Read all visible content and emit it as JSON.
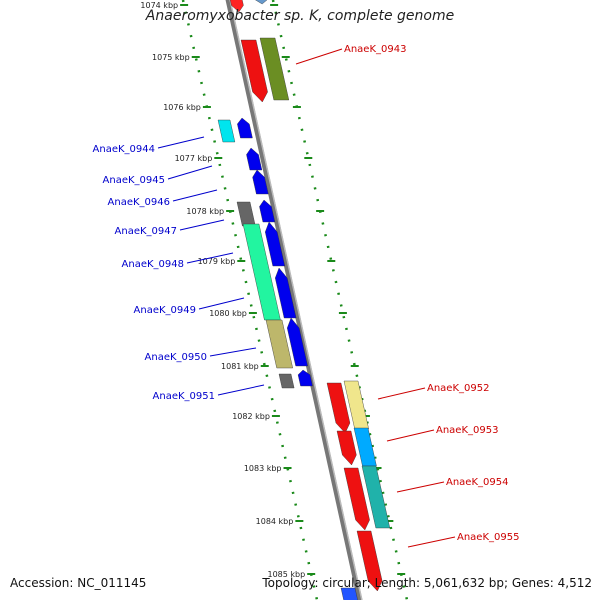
{
  "title": "Anaeromyxobacter sp. K, complete genome",
  "footer": {
    "accession": "Accession: NC_011145",
    "topology": "Topology: circular; Length: 5,061,632 bp; Genes: 4,512"
  },
  "colors": {
    "backbone": "#888888",
    "tick": "#1a8a1a",
    "forward_label": "#cc0000",
    "reverse_label": "#0000cc"
  },
  "kbp_ticks": [
    "1074 kbp",
    "1075 kbp",
    "1076 kbp",
    "1077 kbp",
    "1078 kbp",
    "1079 kbp",
    "1080 kbp",
    "1081 kbp",
    "1082 kbp",
    "1083 kbp",
    "1084 kbp",
    "1085 kbp"
  ],
  "gene_labels": [
    {
      "id": "AnaeK_0943",
      "strand": "forward"
    },
    {
      "id": "AnaeK_0944",
      "strand": "reverse"
    },
    {
      "id": "AnaeK_0945",
      "strand": "reverse"
    },
    {
      "id": "AnaeK_0946",
      "strand": "reverse"
    },
    {
      "id": "AnaeK_0947",
      "strand": "reverse"
    },
    {
      "id": "AnaeK_0948",
      "strand": "reverse"
    },
    {
      "id": "AnaeK_0949",
      "strand": "reverse"
    },
    {
      "id": "AnaeK_0950",
      "strand": "reverse"
    },
    {
      "id": "AnaeK_0951",
      "strand": "reverse"
    },
    {
      "id": "AnaeK_0952",
      "strand": "forward"
    },
    {
      "id": "AnaeK_0953",
      "strand": "forward"
    },
    {
      "id": "AnaeK_0954",
      "strand": "forward"
    },
    {
      "id": "AnaeK_0955",
      "strand": "forward"
    }
  ]
}
